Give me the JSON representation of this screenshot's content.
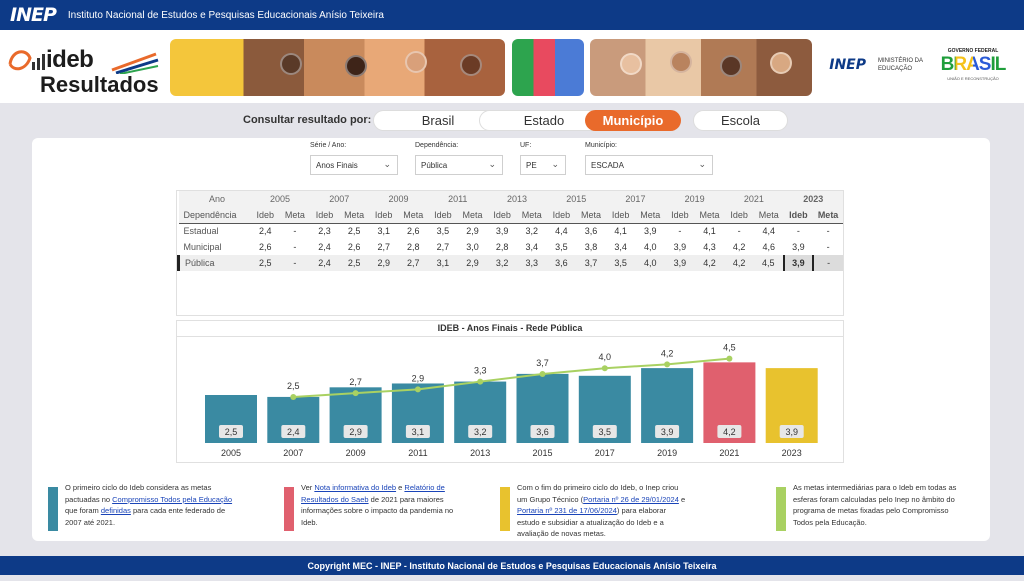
{
  "header": {
    "logo": "INEP",
    "title": "Instituto Nacional de Estudos e Pesquisas Educacionais Anísio Teixeira"
  },
  "hero": {
    "brand_word": "ideb",
    "brand_sub": "Resultados",
    "inep_logo": "INEP",
    "ministerio": "MINISTÉRIO DA EDUCAÇÃO",
    "gov_top": "GOVERNO FEDERAL",
    "gov_brasil": "BRASIL",
    "gov_sub": "UNIÃO E RECONSTRUÇÃO"
  },
  "consult": {
    "label": "Consultar resultado por:",
    "options": [
      "Brasil",
      "Estado",
      "Município",
      "Escola"
    ],
    "active": "Município"
  },
  "filters": {
    "serie": {
      "label": "Série / Ano:",
      "value": "Anos Finais"
    },
    "dependencia": {
      "label": "Dependência:",
      "value": "Pública"
    },
    "uf": {
      "label": "UF:",
      "value": "PE"
    },
    "municipio": {
      "label": "Município:",
      "value": "ESCADA"
    }
  },
  "table": {
    "col_ano": "Ano",
    "col_dep": "Dependência",
    "years": [
      "2005",
      "2007",
      "2009",
      "2011",
      "2013",
      "2015",
      "2017",
      "2019",
      "2021",
      "2023"
    ],
    "ideb_label": "Ideb",
    "meta_label": "Meta",
    "rows": [
      {
        "name": "Estadual",
        "values": [
          "2,4",
          "-",
          "2,3",
          "2,5",
          "3,1",
          "2,6",
          "3,5",
          "2,9",
          "3,9",
          "3,2",
          "4,4",
          "3,6",
          "4,1",
          "3,9",
          "-",
          "4,1",
          "-",
          "4,4",
          "-",
          "-"
        ]
      },
      {
        "name": "Municipal",
        "values": [
          "2,6",
          "-",
          "2,4",
          "2,6",
          "2,7",
          "2,8",
          "2,7",
          "3,0",
          "2,8",
          "3,4",
          "3,5",
          "3,8",
          "3,4",
          "4,0",
          "3,9",
          "4,3",
          "4,2",
          "4,6",
          "3,9",
          "-"
        ]
      },
      {
        "name": "Pública",
        "values": [
          "2,5",
          "-",
          "2,4",
          "2,5",
          "2,9",
          "2,7",
          "3,1",
          "2,9",
          "3,2",
          "3,3",
          "3,6",
          "3,7",
          "3,5",
          "4,0",
          "3,9",
          "4,2",
          "4,2",
          "4,5",
          "3,9",
          "-"
        ]
      }
    ]
  },
  "chart_data": {
    "type": "bar",
    "title": "IDEB - Anos Finais - Rede Pública",
    "categories": [
      "2005",
      "2007",
      "2009",
      "2011",
      "2013",
      "2015",
      "2017",
      "2019",
      "2021",
      "2023"
    ],
    "series": [
      {
        "values": [
          2.5,
          2.4,
          2.9,
          3.1,
          3.2,
          3.6,
          3.5,
          3.9,
          4.2,
          3.9
        ],
        "labels": [
          "2,5",
          "2,4",
          "2,9",
          "3,1",
          "3,2",
          "3,6",
          "3,5",
          "3,9",
          "4,2",
          "3,9"
        ]
      },
      {
        "values": [
          null,
          2.5,
          2.7,
          2.9,
          3.3,
          3.7,
          4.0,
          4.2,
          4.5,
          null
        ],
        "labels": [
          "",
          "2,5",
          "2,7",
          "2,9",
          "3,3",
          "3,7",
          "4,0",
          "4,2",
          "4,5",
          ""
        ]
      }
    ],
    "bar_colors": [
      "#3a8aa2",
      "#3a8aa2",
      "#3a8aa2",
      "#3a8aa2",
      "#3a8aa2",
      "#3a8aa2",
      "#3a8aa2",
      "#3a8aa2",
      "#e0606e",
      "#e8c22e"
    ],
    "line_color": "#a9d162",
    "ylim": [
      0,
      5
    ]
  },
  "notes": [
    {
      "color": "#3a8aa2",
      "parts": [
        {
          "t": "O primeiro ciclo do Ideb considera as metas pactuadas no "
        },
        {
          "t": "Compromisso Todos pela Educação",
          "link": true
        },
        {
          "t": " que foram "
        },
        {
          "t": "definidas",
          "link": true
        },
        {
          "t": " para cada ente federado de 2007 até 2021."
        }
      ]
    },
    {
      "color": "#e0606e",
      "parts": [
        {
          "t": "Ver "
        },
        {
          "t": "Nota informativa do Ideb",
          "link": true
        },
        {
          "t": " e "
        },
        {
          "t": "Relatório de Resultados do Saeb",
          "link": true
        },
        {
          "t": " de 2021 para maiores informações sobre o impacto da pandemia no Ideb."
        }
      ]
    },
    {
      "color": "#e8c22e",
      "parts": [
        {
          "t": "Com o fim do primeiro ciclo do Ideb, o Inep criou um Grupo Técnico ("
        },
        {
          "t": "Portaria nº 26 de 29/01/2024",
          "link": true
        },
        {
          "t": " e "
        },
        {
          "t": "Portaria nº 231 de 17/06/2024",
          "link": true
        },
        {
          "t": ") para elaborar estudo e subsidiar a atualização do Ideb e a avaliação de novas metas."
        }
      ]
    },
    {
      "color": "#a9d162",
      "parts": [
        {
          "t": "As metas intermediárias para o Ideb em todas as esferas foram calculadas pelo Inep no âmbito do programa de metas fixadas pelo Compromisso Todos pela Educação."
        }
      ]
    }
  ],
  "footer": "Copyright MEC - INEP - Instituto Nacional de Estudos e Pesquisas Educacionais Anísio Teixeira"
}
